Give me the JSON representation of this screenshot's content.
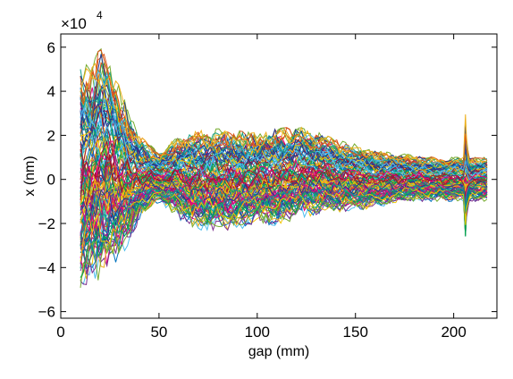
{
  "chart_data": {
    "type": "line",
    "title": "",
    "xlabel": "gap (mm)",
    "ylabel": "x (nm)",
    "y_multiplier": {
      "base": "×10",
      "exponent": "4"
    },
    "xlim": [
      0,
      222
    ],
    "ylim": [
      -6.3,
      6.6
    ],
    "x_ticks": [
      0,
      50,
      100,
      150,
      200
    ],
    "x_tick_labels": [
      "0",
      "50",
      "100",
      "150",
      "200"
    ],
    "y_ticks": [
      -6,
      -4,
      -2,
      0,
      2,
      4,
      6
    ],
    "y_tick_labels": [
      "−6",
      "−4",
      "−2",
      "0",
      "2",
      "4",
      "6"
    ],
    "grid": false,
    "legend": "none",
    "x_range_of_data": [
      10,
      218
    ],
    "envelope": [
      {
        "x": 10,
        "max": 5.5,
        "min": -5.5
      },
      {
        "x": 15,
        "max": 5.0,
        "min": -4.5
      },
      {
        "x": 20,
        "max": 6.0,
        "min": -4.6
      },
      {
        "x": 25,
        "max": 5.2,
        "min": -4.0
      },
      {
        "x": 30,
        "max": 4.2,
        "min": -3.6
      },
      {
        "x": 35,
        "max": 3.0,
        "min": -3.0
      },
      {
        "x": 40,
        "max": 2.0,
        "min": -1.8
      },
      {
        "x": 45,
        "max": 1.6,
        "min": -1.4
      },
      {
        "x": 50,
        "max": 1.2,
        "min": -1.0
      },
      {
        "x": 60,
        "max": 2.0,
        "min": -1.8
      },
      {
        "x": 70,
        "max": 2.2,
        "min": -2.3
      },
      {
        "x": 80,
        "max": 2.3,
        "min": -2.3
      },
      {
        "x": 90,
        "max": 2.2,
        "min": -2.3
      },
      {
        "x": 100,
        "max": 2.1,
        "min": -2.0
      },
      {
        "x": 110,
        "max": 2.3,
        "min": -2.1
      },
      {
        "x": 120,
        "max": 2.4,
        "min": -1.8
      },
      {
        "x": 130,
        "max": 2.2,
        "min": -1.6
      },
      {
        "x": 140,
        "max": 1.8,
        "min": -1.5
      },
      {
        "x": 150,
        "max": 1.6,
        "min": -1.4
      },
      {
        "x": 160,
        "max": 1.3,
        "min": -1.3
      },
      {
        "x": 170,
        "max": 1.2,
        "min": -1.1
      },
      {
        "x": 180,
        "max": 1.1,
        "min": -1.0
      },
      {
        "x": 190,
        "max": 1.0,
        "min": -1.0
      },
      {
        "x": 200,
        "max": 1.0,
        "min": -1.0
      },
      {
        "x": 205,
        "max": 1.0,
        "min": -1.0
      },
      {
        "x": 206,
        "max": 3.1,
        "min": -3.1
      },
      {
        "x": 207,
        "max": 1.0,
        "min": -1.0
      },
      {
        "x": 218,
        "max": 1.0,
        "min": -1.0
      }
    ],
    "series_count": 120,
    "colors": [
      "#0072bd",
      "#d95319",
      "#edb120",
      "#7e2f8e",
      "#77ac30",
      "#4dbeee",
      "#a2142f",
      "#00a651",
      "#e6007e",
      "#1f3a93",
      "#f2c500",
      "#16a085"
    ]
  }
}
